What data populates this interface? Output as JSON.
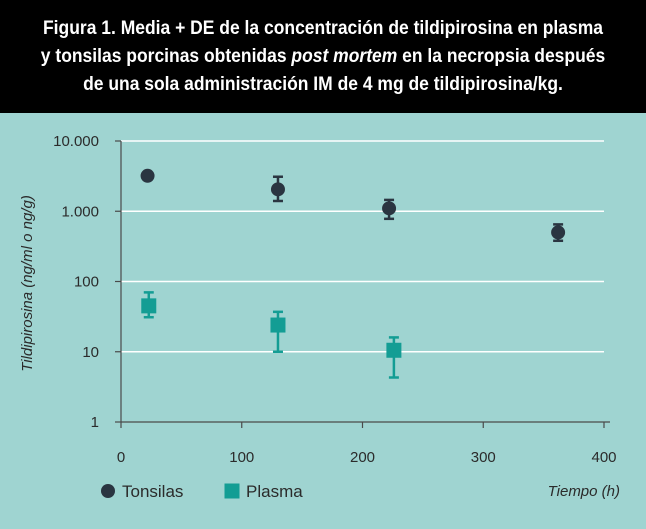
{
  "header": {
    "title_part1": "Figura 1. Media + DE de la concentración de tildipirosina en plasma y tonsilas porcinas obtenidas ",
    "title_italic": "post mortem",
    "title_part2": " en la necropsia después de una sola administración IM de 4 mg de tildipirosina/kg."
  },
  "colors": {
    "background": "#9fd4d1",
    "header_bg": "#000000",
    "tonsilas": "#2a3541",
    "plasma": "#139d94",
    "grid": "#ffffff",
    "axis": "#4a4a4a"
  },
  "chart_data": {
    "type": "scatter",
    "y_scale": "log",
    "xlabel": "Tiempo (h)",
    "ylabel": "Tildipirosina (ng/ml o ng/g)",
    "xlim": [
      0,
      400
    ],
    "ylim": [
      1,
      10000
    ],
    "x_ticks": [
      {
        "value": 0,
        "label": "0"
      },
      {
        "value": 100,
        "label": "100"
      },
      {
        "value": 200,
        "label": "200"
      },
      {
        "value": 300,
        "label": "300"
      },
      {
        "value": 400,
        "label": "400"
      }
    ],
    "y_ticks": [
      {
        "value": 1,
        "label": "1"
      },
      {
        "value": 10,
        "label": "10"
      },
      {
        "value": 100,
        "label": "100"
      },
      {
        "value": 1000,
        "label": "1.000"
      },
      {
        "value": 10000,
        "label": "10.000"
      }
    ],
    "series": [
      {
        "name": "Tonsilas",
        "marker": "circle",
        "color": "#2a3541",
        "points": [
          {
            "x": 22,
            "y": 3200,
            "err_low": 3000,
            "err_high": 3400
          },
          {
            "x": 130,
            "y": 2050,
            "err_low": 1400,
            "err_high": 3100
          },
          {
            "x": 222,
            "y": 1100,
            "err_low": 780,
            "err_high": 1450
          },
          {
            "x": 362,
            "y": 500,
            "err_low": 380,
            "err_high": 650
          }
        ]
      },
      {
        "name": "Plasma",
        "marker": "square",
        "color": "#139d94",
        "points": [
          {
            "x": 23,
            "y": 45,
            "err_low": 31,
            "err_high": 70
          },
          {
            "x": 130,
            "y": 24,
            "err_low": 10,
            "err_high": 37
          },
          {
            "x": 226,
            "y": 10.5,
            "err_low": 4.3,
            "err_high": 16
          }
        ]
      }
    ],
    "legend": {
      "position": "bottom-left",
      "items": [
        {
          "label": "Tonsilas",
          "marker": "circle",
          "color": "#2a3541"
        },
        {
          "label": "Plasma",
          "marker": "square",
          "color": "#139d94"
        }
      ]
    }
  }
}
